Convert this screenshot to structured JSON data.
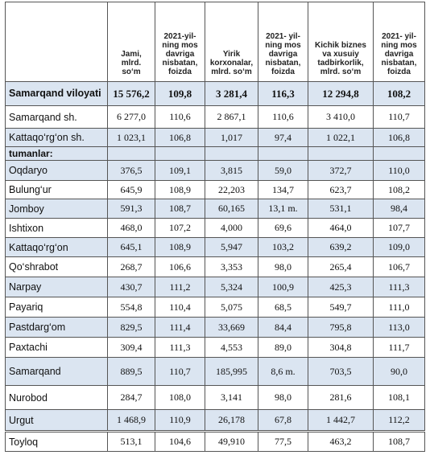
{
  "table": {
    "header": [
      "",
      "Jami, mlrd. so‘m",
      "2021-yil-ning mos davriga nisbatan, foizda",
      "Yirik korxonalar, mlrd. so‘m",
      "2021- yil-ning mos davriga nisbatan, foizda",
      "Kichik biznes va xusuiy tadbirkorlik, mlrd. so‘m",
      "2021- yil-ning mos davriga nisbatan, foizda"
    ],
    "rows": [
      [
        "Samarqand viloyati",
        "15 576,2",
        "109,8",
        "3 281,4",
        "116,3",
        "12 294,8",
        "108,2"
      ],
      [
        "Samarqand sh.",
        "6 277,0",
        "110,6",
        "2 867,1",
        "110,6",
        "3 410,0",
        "110,7"
      ],
      [
        "Kattaqo‘rg‘on sh.",
        "1 023,1",
        "106,8",
        "1,017",
        "97,4",
        "1 022,1",
        "106,8"
      ],
      [
        "tumanlar:"
      ],
      [
        "Oqdaryo",
        "376,5",
        "109,1",
        "3,815",
        "59,0",
        "372,7",
        "110,0"
      ],
      [
        "Bulung‘ur",
        "645,9",
        "108,9",
        "22,203",
        "134,7",
        "623,7",
        "108,2"
      ],
      [
        "Jomboy",
        "591,3",
        "108,7",
        "60,165",
        "13,1 m.",
        "531,1",
        "98,4"
      ],
      [
        "Ishtixon",
        "468,0",
        "107,2",
        "4,000",
        "69,6",
        "464,0",
        "107,7"
      ],
      [
        "Kattaqo‘rg‘on",
        "645,1",
        "108,9",
        "5,947",
        "103,2",
        "639,2",
        "109,0"
      ],
      [
        "Qo‘shrabot",
        "268,7",
        "106,6",
        "3,353",
        "98,0",
        "265,4",
        "106,7"
      ],
      [
        "Narpay",
        "430,7",
        "111,2",
        "5,324",
        "100,9",
        "425,3",
        "111,3"
      ],
      [
        "Payariq",
        "554,8",
        "110,4",
        "5,075",
        "68,5",
        "549,7",
        "111,0"
      ],
      [
        "Pastdarg‘om",
        "829,5",
        "111,4",
        "33,669",
        "84,4",
        "795,8",
        "113,0"
      ],
      [
        "Paxtachi",
        "309,4",
        "111,3",
        "4,553",
        "89,0",
        "304,8",
        "111,7"
      ],
      [
        "Samarqand",
        "889,5",
        "110,7",
        "185,995",
        "8,6 m.",
        "703,5",
        "90,0"
      ],
      [
        "Nurobod",
        "284,7",
        "108,0",
        "3,141",
        "98,0",
        "281,6",
        "108,1"
      ],
      [
        "Urgut",
        "1 468,9",
        "110,9",
        "26,178",
        "67,8",
        "1 442,7",
        "112,2"
      ],
      [
        "Toyloq",
        "513,1",
        "104,6",
        "49,910",
        "77,5",
        "463,2",
        "108,7"
      ]
    ]
  }
}
